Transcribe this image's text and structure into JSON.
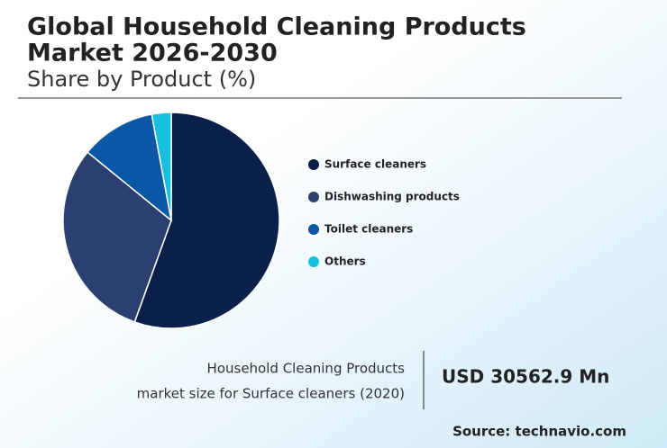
{
  "title_lines": [
    "Global Household Cleaning Products",
    "Market 2026-2030"
  ],
  "subtitle": "Share by Product (%)",
  "chart_data": {
    "type": "pie",
    "categories": [
      "Surface cleaners",
      "Dishwashing products",
      "Toilet cleaners",
      "Others"
    ],
    "values": [
      55.5,
      30.4,
      11.2,
      2.9
    ],
    "colors": [
      "#0a1f4a",
      "#2b3f70",
      "#0a57a6",
      "#17c0dc"
    ],
    "legend": "right"
  },
  "market_label_lines": [
    "Household Cleaning Products",
    "market size for Surface cleaners (2020)"
  ],
  "market_value": "USD 30562.9 Mn",
  "source": "Source: technavio.com"
}
